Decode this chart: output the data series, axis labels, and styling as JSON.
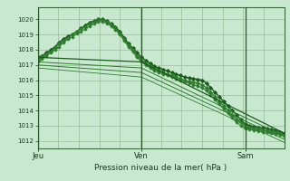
{
  "background_color": "#c8e8d0",
  "plot_bg_color": "#c8e8d0",
  "grid_color": "#99bb99",
  "ylim": [
    1011.5,
    1020.8
  ],
  "yticks": [
    1012,
    1013,
    1014,
    1015,
    1016,
    1017,
    1018,
    1019,
    1020
  ],
  "xlabel": "Pression niveau de la mer( hPa )",
  "day_labels": [
    "Jeu",
    "Ven",
    "Sam"
  ],
  "day_positions": [
    0,
    48,
    96
  ],
  "xlim": [
    0,
    114
  ],
  "series": [
    {
      "x": [
        0,
        2,
        4,
        6,
        8,
        10,
        12,
        14,
        16,
        18,
        20,
        22,
        24,
        26,
        28,
        30,
        32,
        34,
        36,
        38,
        40,
        42,
        44,
        46,
        48,
        50,
        52,
        54,
        56,
        58,
        60,
        62,
        64,
        66,
        68,
        70,
        72,
        74,
        76,
        78,
        80,
        82,
        84,
        86,
        88,
        90,
        92,
        94,
        96,
        98,
        100,
        102,
        104,
        106,
        108,
        110,
        112,
        114
      ],
      "y": [
        1017.5,
        1017.6,
        1017.8,
        1018.0,
        1018.2,
        1018.5,
        1018.7,
        1018.9,
        1019.0,
        1019.2,
        1019.4,
        1019.6,
        1019.8,
        1019.9,
        1020.0,
        1020.0,
        1019.9,
        1019.7,
        1019.5,
        1019.2,
        1018.8,
        1018.4,
        1018.1,
        1017.8,
        1017.5,
        1017.3,
        1017.1,
        1016.9,
        1016.8,
        1016.7,
        1016.6,
        1016.5,
        1016.4,
        1016.3,
        1016.2,
        1016.15,
        1016.1,
        1016.05,
        1016.0,
        1015.8,
        1015.5,
        1015.2,
        1014.9,
        1014.6,
        1014.3,
        1014.0,
        1013.7,
        1013.4,
        1013.1,
        1013.0,
        1012.95,
        1012.9,
        1012.85,
        1012.8,
        1012.75,
        1012.7,
        1012.6,
        1012.5
      ],
      "marker": "D",
      "ms": 2.0,
      "lw": 1.0,
      "color": "#1a5c1a"
    },
    {
      "x": [
        0,
        2,
        4,
        6,
        8,
        10,
        12,
        14,
        16,
        18,
        20,
        22,
        24,
        26,
        28,
        30,
        32,
        34,
        36,
        38,
        40,
        42,
        44,
        46,
        48,
        50,
        52,
        54,
        56,
        58,
        60,
        62,
        64,
        66,
        68,
        70,
        72,
        74,
        76,
        78,
        80,
        82,
        84,
        86,
        88,
        90,
        92,
        94,
        96,
        98,
        100,
        102,
        104,
        106,
        108,
        110,
        112,
        114
      ],
      "y": [
        1017.3,
        1017.5,
        1017.7,
        1017.9,
        1018.1,
        1018.4,
        1018.6,
        1018.8,
        1019.0,
        1019.2,
        1019.4,
        1019.5,
        1019.7,
        1019.85,
        1019.95,
        1019.95,
        1019.85,
        1019.65,
        1019.4,
        1019.1,
        1018.7,
        1018.3,
        1018.0,
        1017.6,
        1017.3,
        1017.1,
        1016.9,
        1016.75,
        1016.6,
        1016.5,
        1016.4,
        1016.3,
        1016.2,
        1016.1,
        1016.0,
        1015.9,
        1015.85,
        1015.8,
        1015.7,
        1015.5,
        1015.2,
        1014.9,
        1014.6,
        1014.3,
        1014.0,
        1013.7,
        1013.4,
        1013.2,
        1012.9,
        1012.85,
        1012.8,
        1012.75,
        1012.7,
        1012.65,
        1012.6,
        1012.55,
        1012.5,
        1012.4
      ],
      "marker": "P",
      "ms": 2.5,
      "lw": 0.9,
      "color": "#2e7d2e"
    },
    {
      "x": [
        0,
        2,
        4,
        6,
        8,
        10,
        12,
        14,
        16,
        18,
        20,
        22,
        24,
        26,
        28,
        30,
        32,
        34,
        36,
        38,
        40,
        42,
        44,
        46,
        48,
        50,
        52,
        54,
        56,
        58,
        60,
        62,
        64,
        66,
        68,
        70,
        72,
        74,
        76,
        78,
        80,
        82,
        84,
        86,
        88,
        90,
        92,
        94,
        96,
        98,
        100,
        102,
        104,
        106,
        108,
        110,
        112,
        114
      ],
      "y": [
        1017.2,
        1017.4,
        1017.6,
        1017.8,
        1018.0,
        1018.2,
        1018.5,
        1018.7,
        1018.85,
        1019.05,
        1019.2,
        1019.35,
        1019.55,
        1019.7,
        1019.85,
        1019.85,
        1019.75,
        1019.55,
        1019.3,
        1019.0,
        1018.6,
        1018.2,
        1017.85,
        1017.5,
        1017.2,
        1017.0,
        1016.8,
        1016.6,
        1016.5,
        1016.4,
        1016.3,
        1016.2,
        1016.1,
        1016.0,
        1015.9,
        1015.8,
        1015.7,
        1015.6,
        1015.5,
        1015.3,
        1015.0,
        1014.7,
        1014.4,
        1014.1,
        1013.8,
        1013.5,
        1013.2,
        1013.0,
        1012.8,
        1012.75,
        1012.7,
        1012.65,
        1012.6,
        1012.55,
        1012.5,
        1012.45,
        1012.4,
        1012.3
      ],
      "marker": "P",
      "ms": 2.0,
      "lw": 0.8,
      "color": "#2e7d2e"
    },
    {
      "x": [
        0,
        48,
        114
      ],
      "y": [
        1017.5,
        1017.2,
        1012.5
      ],
      "marker": null,
      "ms": 0,
      "lw": 0.9,
      "color": "#1a5c1a"
    },
    {
      "x": [
        0,
        48,
        114
      ],
      "y": [
        1017.2,
        1016.8,
        1012.3
      ],
      "marker": null,
      "ms": 0,
      "lw": 0.7,
      "color": "#2e7d2e"
    },
    {
      "x": [
        0,
        48,
        114
      ],
      "y": [
        1017.0,
        1016.5,
        1012.1
      ],
      "marker": null,
      "ms": 0,
      "lw": 0.7,
      "color": "#2e7d2e"
    },
    {
      "x": [
        0,
        48,
        114
      ],
      "y": [
        1016.8,
        1016.2,
        1011.9
      ],
      "marker": null,
      "ms": 0,
      "lw": 0.6,
      "color": "#2e7d2e"
    }
  ]
}
